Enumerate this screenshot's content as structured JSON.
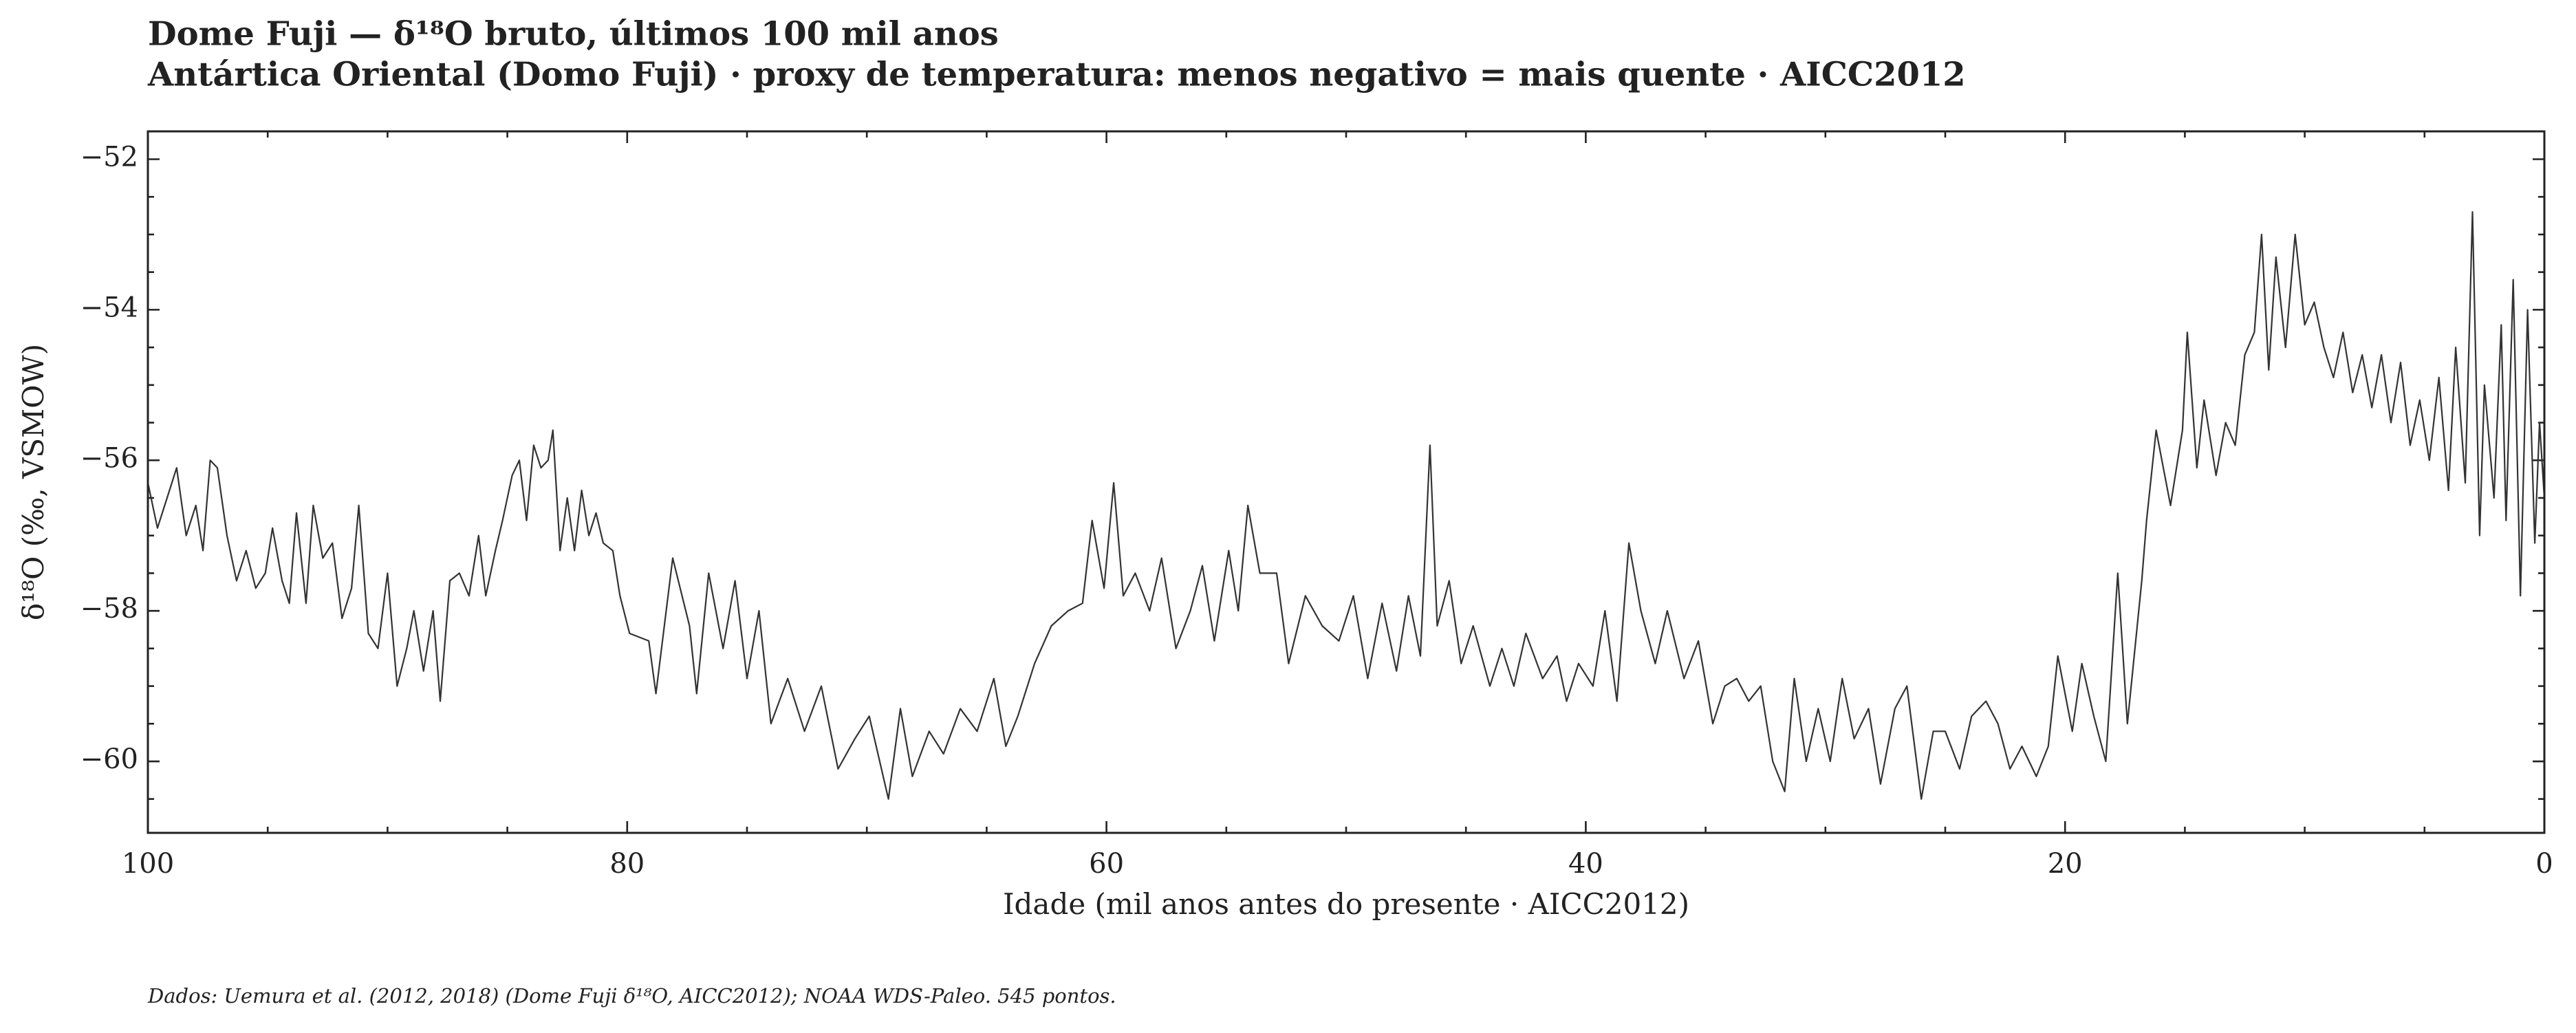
{
  "chart_data": {
    "type": "line",
    "title": "Dome Fuji — δ¹⁸O bruto, últimos 100 mil anos",
    "subtitle": "Antártica Oriental (Domo Fuji) · proxy de temperatura: menos negativo = mais quente · AICC2012",
    "x_label": "Idade (mil anos antes do presente · AICC2012)",
    "y_label": "δ¹⁸O (‰, VSMOW)",
    "footnote": "Dados: Uemura et al. (2012, 2018) (Dome Fuji δ¹⁸O, AICC2012); NOAA WDS-Paleo. 545 pontos.",
    "xlim": [
      100,
      0
    ],
    "xticks": [
      100,
      80,
      60,
      40,
      20,
      0
    ],
    "xticks_minor": [
      95,
      90,
      85,
      75,
      70,
      65,
      55,
      50,
      45,
      35,
      30,
      25,
      15,
      10,
      5
    ],
    "ylim": [
      -60.95,
      -51.63
    ],
    "yticks": [
      {
        "value": -60,
        "label": "−60"
      },
      {
        "value": -58,
        "label": "−58"
      },
      {
        "value": -56,
        "label": "−56"
      },
      {
        "value": -54,
        "label": "−54"
      },
      {
        "value": -52,
        "label": "−52"
      }
    ],
    "yticks_minor": [
      -60.5,
      -59.5,
      -59,
      -58.5,
      -57.5,
      -57,
      -56.5,
      -55.5,
      -55,
      -54.5,
      -53.5,
      -53,
      -52.5
    ],
    "x": [
      100,
      99.6,
      99.2,
      98.8,
      98.4,
      98.0,
      97.7,
      97.4,
      97.1,
      96.7,
      96.3,
      95.9,
      95.5,
      95.1,
      94.8,
      94.4,
      94.1,
      93.8,
      93.4,
      93.1,
      92.7,
      92.3,
      91.9,
      91.5,
      91.2,
      90.8,
      90.4,
      90.0,
      89.6,
      89.2,
      88.9,
      88.5,
      88.1,
      87.8,
      87.4,
      87.0,
      86.6,
      86.2,
      85.9,
      85.5,
      85.2,
      84.8,
      84.5,
      84.2,
      83.9,
      83.6,
      83.3,
      83.1,
      82.8,
      82.5,
      82.2,
      81.9,
      81.6,
      81.3,
      81.0,
      80.6,
      80.3,
      79.9,
      79.1,
      78.8,
      78.1,
      77.4,
      77.1,
      76.6,
      76,
      75.5,
      75,
      74.5,
      74,
      73.3,
      72.6,
      71.9,
      71.2,
      70.5,
      69.9,
      69.1,
      68.6,
      68.1,
      67.4,
      66.8,
      66.1,
      65.4,
      64.7,
      64.2,
      63.7,
      63.0,
      62.3,
      61.6,
      61.0,
      60.6,
      60.1,
      59.7,
      59.3,
      58.8,
      58.2,
      57.7,
      57.1,
      56.5,
      56.0,
      55.5,
      54.9,
      54.5,
      54.1,
      53.6,
      52.9,
      52.4,
      51.7,
      51.0,
      50.3,
      49.7,
      49.1,
      48.5,
      47.9,
      47.4,
      46.9,
      46.5,
      46.2,
      45.7,
      45.2,
      44.7,
      44.0,
      43.5,
      43.0,
      42.5,
      41.8,
      41.2,
      40.8,
      40.3,
      39.7,
      39.2,
      38.7,
      38.2,
      37.7,
      37.1,
      36.6,
      35.9,
      35.3,
      34.7,
      34.2,
      33.7,
      33.2,
      32.7,
      32.2,
      31.7,
      31.3,
      30.8,
      30.3,
      29.8,
      29.3,
      28.8,
      28.2,
      27.7,
      27.1,
      26.6,
      26.0,
      25.5,
      25.0,
      24.4,
      23.9,
      23.3,
      22.8,
      22.3,
      21.8,
      21.2,
      20.7,
      20.3,
      19.7,
      19.3,
      18.8,
      18.3,
      17.8,
      17.4,
      16.8,
      16.6,
      16.2,
      15.6,
      15.1,
      14.9,
      14.5,
      14.2,
      13.7,
      13.3,
      12.9,
      12.5,
      12.1,
      11.8,
      11.5,
      11.2,
      10.8,
      10.4,
      10.0,
      9.6,
      9.2,
      8.8,
      8.4,
      8.0,
      7.6,
      7.2,
      6.8,
      6.4,
      6.0,
      5.6,
      5.2,
      4.8,
      4.4,
      4.0,
      3.7,
      3.3,
      3.0,
      2.7,
      2.5,
      2.1,
      1.8,
      1.6,
      1.3,
      1.0,
      0.7,
      0.4,
      0.2,
      0
    ],
    "series": [
      {
        "color": "#333333",
        "values": [
          -56.3,
          -56.9,
          -56.5,
          -56.1,
          -57.0,
          -56.6,
          -57.2,
          -56.0,
          -56.1,
          -57.0,
          -57.6,
          -57.2,
          -57.7,
          -57.5,
          -56.9,
          -57.6,
          -57.9,
          -56.7,
          -57.9,
          -56.6,
          -57.3,
          -57.1,
          -58.1,
          -57.7,
          -56.6,
          -58.3,
          -58.5,
          -57.5,
          -59.0,
          -58.5,
          -58.0,
          -58.8,
          -58.0,
          -59.2,
          -57.6,
          -57.5,
          -57.8,
          -57.0,
          -57.8,
          -57.2,
          -56.8,
          -56.2,
          -56.0,
          -56.8,
          -55.8,
          -56.1,
          -56.0,
          -55.6,
          -57.2,
          -56.5,
          -57.2,
          -56.4,
          -57.0,
          -56.7,
          -57.1,
          -57.2,
          -57.8,
          -58.3,
          -58.4,
          -59.1,
          -57.3,
          -58.2,
          -59.1,
          -57.5,
          -58.5,
          -57.6,
          -58.9,
          -58.0,
          -59.5,
          -58.9,
          -59.6,
          -59.0,
          -60.1,
          -59.7,
          -59.4,
          -60.5,
          -59.3,
          -60.2,
          -59.6,
          -59.9,
          -59.3,
          -59.6,
          -58.9,
          -59.8,
          -59.4,
          -58.7,
          -58.2,
          -58.0,
          -57.9,
          -56.8,
          -57.7,
          -56.3,
          -57.8,
          -57.5,
          -58.0,
          -57.3,
          -58.5,
          -58.0,
          -57.4,
          -58.4,
          -57.2,
          -58.0,
          -56.6,
          -57.5,
          -57.5,
          -58.7,
          -57.8,
          -58.2,
          -58.4,
          -57.8,
          -58.9,
          -57.9,
          -58.8,
          -57.8,
          -58.6,
          -55.8,
          -58.2,
          -57.6,
          -58.7,
          -58.2,
          -59.0,
          -58.5,
          -59.0,
          -58.3,
          -58.9,
          -58.6,
          -59.2,
          -58.7,
          -59.0,
          -58.0,
          -59.2,
          -57.1,
          -58.0,
          -58.7,
          -58.0,
          -58.9,
          -58.4,
          -59.5,
          -59.0,
          -58.9,
          -59.2,
          -59.0,
          -60.0,
          -60.4,
          -58.9,
          -60.0,
          -59.3,
          -60.0,
          -58.9,
          -59.7,
          -59.3,
          -60.3,
          -59.3,
          -59.0,
          -60.5,
          -59.6,
          -59.6,
          -60.1,
          -59.4,
          -59.2,
          -59.5,
          -60.1,
          -59.8,
          -60.2,
          -59.8,
          -58.6,
          -59.6,
          -58.7,
          -59.4,
          -60.0,
          -57.5,
          -59.5,
          -57.6,
          -56.8,
          -55.6,
          -56.6,
          -55.6,
          -54.3,
          -56.1,
          -55.2,
          -56.2,
          -55.5,
          -55.8,
          -54.6,
          -54.3,
          -53.0,
          -54.8,
          -53.3,
          -54.5,
          -53.0,
          -54.2,
          -53.9,
          -54.5,
          -54.9,
          -54.3,
          -55.1,
          -54.6,
          -55.3,
          -54.6,
          -55.5,
          -54.7,
          -55.8,
          -55.2,
          -56.0,
          -54.9,
          -56.4,
          -54.5,
          -56.3,
          -52.7,
          -57.0,
          -55.0,
          -56.5,
          -54.2,
          -56.8,
          -53.6,
          -57.8,
          -54.0,
          -57.1,
          -55.5,
          -56.5
        ]
      }
    ]
  }
}
